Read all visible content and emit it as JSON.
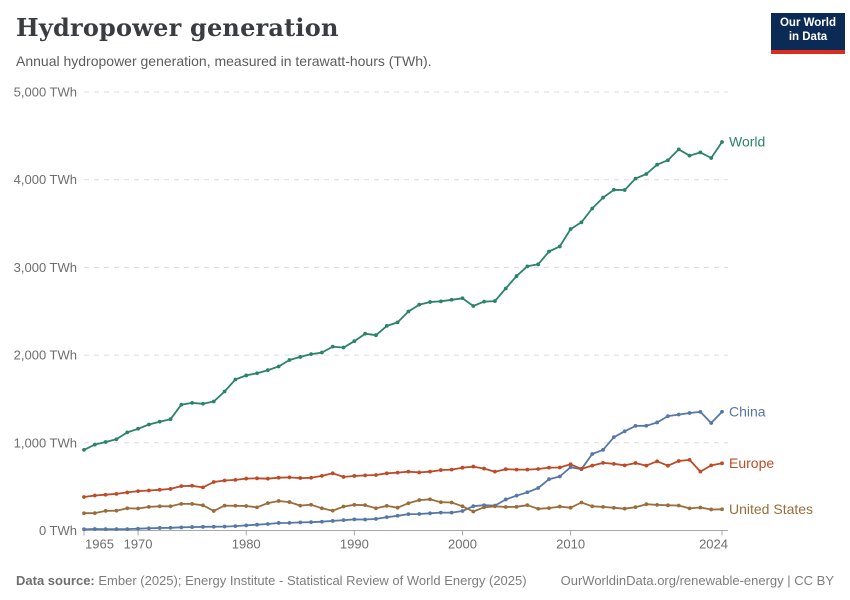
{
  "header": {
    "title": "Hydropower generation",
    "subtitle": "Annual hydropower generation, measured in terawatt-hours (TWh).",
    "logo": {
      "line1": "Our World",
      "line2": "in Data"
    }
  },
  "footer": {
    "source_label": "Data source:",
    "source_text": " Ember (2025); Energy Institute - Statistical Review of World Energy (2025)",
    "right_text": "OurWorldinData.org/renewable-energy | CC BY"
  },
  "chart_data": {
    "type": "line",
    "title": "Hydropower generation",
    "subtitle": "Annual hydropower generation, measured in terawatt-hours (TWh).",
    "xlabel": "",
    "ylabel": "TWh",
    "xlim": [
      1965,
      2024
    ],
    "ylim": [
      0,
      5000
    ],
    "grid": "dashed-horizontal",
    "legend_position": "line-end-labels",
    "yticks": [
      {
        "value": 0,
        "label": "0 TWh"
      },
      {
        "value": 1000,
        "label": "1,000 TWh"
      },
      {
        "value": 2000,
        "label": "2,000 TWh"
      },
      {
        "value": 3000,
        "label": "3,000 TWh"
      },
      {
        "value": 4000,
        "label": "4,000 TWh"
      },
      {
        "value": 5000,
        "label": "5,000 TWh"
      }
    ],
    "xticks": [
      {
        "value": 1965,
        "label": "1965"
      },
      {
        "value": 1970,
        "label": "1970"
      },
      {
        "value": 1980,
        "label": "1980"
      },
      {
        "value": 1990,
        "label": "1990"
      },
      {
        "value": 2000,
        "label": "2000"
      },
      {
        "value": 2010,
        "label": "2010"
      },
      {
        "value": 2024,
        "label": "2024"
      }
    ],
    "x": [
      1965,
      1966,
      1967,
      1968,
      1969,
      1970,
      1971,
      1972,
      1973,
      1974,
      1975,
      1976,
      1977,
      1978,
      1979,
      1980,
      1981,
      1982,
      1983,
      1984,
      1985,
      1986,
      1987,
      1988,
      1989,
      1990,
      1991,
      1992,
      1993,
      1994,
      1995,
      1996,
      1997,
      1998,
      1999,
      2000,
      2001,
      2002,
      2003,
      2004,
      2005,
      2006,
      2007,
      2008,
      2009,
      2010,
      2011,
      2012,
      2013,
      2014,
      2015,
      2016,
      2017,
      2018,
      2019,
      2020,
      2021,
      2022,
      2023,
      2024
    ],
    "series": [
      {
        "name": "World",
        "color": "#2b8465",
        "values": [
          919,
          979,
          1009,
          1040,
          1119,
          1160,
          1209,
          1241,
          1269,
          1434,
          1455,
          1445,
          1471,
          1585,
          1722,
          1768,
          1793,
          1828,
          1870,
          1944,
          1979,
          2011,
          2029,
          2097,
          2086,
          2159,
          2244,
          2227,
          2333,
          2373,
          2497,
          2575,
          2605,
          2613,
          2631,
          2648,
          2560,
          2610,
          2616,
          2759,
          2901,
          3012,
          3035,
          3181,
          3239,
          3437,
          3514,
          3672,
          3796,
          3885,
          3882,
          4012,
          4065,
          4171,
          4222,
          4346,
          4274,
          4311,
          4247,
          4430
        ]
      },
      {
        "name": "China",
        "color": "#5578a8",
        "values": [
          14,
          17,
          15,
          15,
          16,
          20,
          25,
          29,
          31,
          36,
          39,
          42,
          43,
          45,
          50,
          58,
          66,
          74,
          86,
          87,
          92,
          95,
          100,
          109,
          118,
          127,
          125,
          132,
          152,
          168,
          187,
          188,
          196,
          204,
          204,
          222,
          277,
          288,
          284,
          354,
          397,
          436,
          485,
          585,
          616,
          722,
          699,
          872,
          920,
          1064,
          1131,
          1193,
          1194,
          1232,
          1304,
          1322,
          1340,
          1352,
          1226,
          1354
        ]
      },
      {
        "name": "Europe",
        "color": "#bd4b27",
        "values": [
          382,
          399,
          408,
          417,
          434,
          449,
          456,
          464,
          474,
          506,
          510,
          492,
          553,
          570,
          577,
          592,
          595,
          591,
          602,
          606,
          598,
          601,
          623,
          652,
          611,
          622,
          628,
          633,
          652,
          660,
          671,
          662,
          671,
          689,
          694,
          716,
          729,
          706,
          671,
          699,
          694,
          694,
          701,
          717,
          718,
          755,
          702,
          740,
          771,
          760,
          743,
          769,
          740,
          789,
          739,
          792,
          805,
          672,
          742,
          766
        ]
      },
      {
        "name": "United States",
        "color": "#9a6e3a",
        "values": [
          197,
          198,
          224,
          226,
          253,
          251,
          269,
          276,
          276,
          304,
          303,
          287,
          223,
          284,
          282,
          279,
          264,
          312,
          336,
          324,
          284,
          294,
          253,
          226,
          273,
          293,
          289,
          253,
          281,
          260,
          311,
          347,
          356,
          323,
          319,
          276,
          217,
          264,
          276,
          268,
          270,
          289,
          248,
          255,
          273,
          260,
          319,
          276,
          269,
          259,
          249,
          266,
          300,
          292,
          287,
          285,
          252,
          262,
          240,
          242
        ]
      }
    ]
  }
}
